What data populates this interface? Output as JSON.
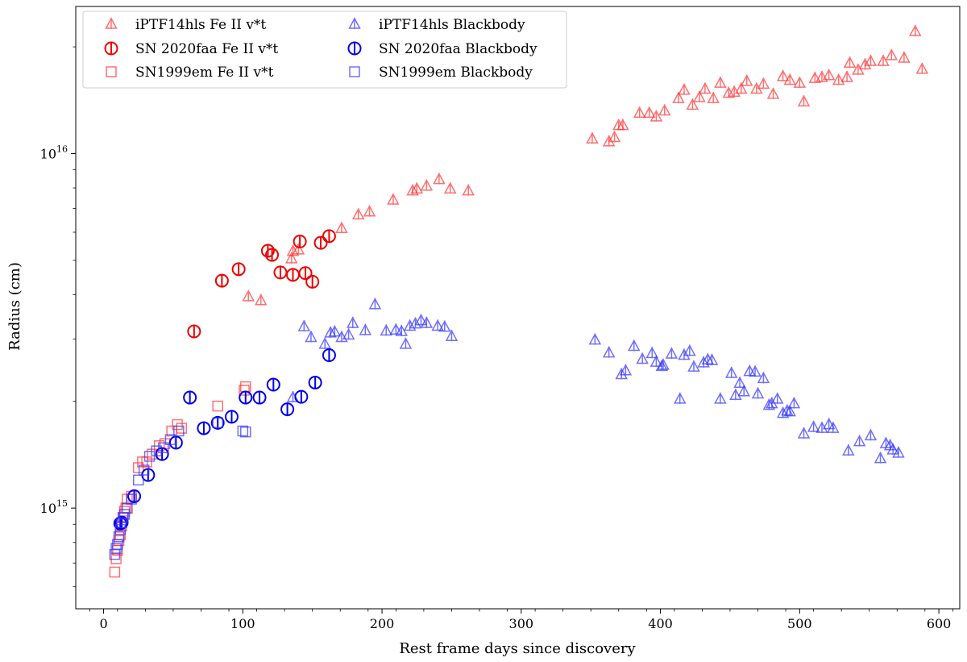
{
  "chart_data": {
    "type": "scatter",
    "title": "",
    "xlabel": "Rest frame days since discovery",
    "ylabel": "Radius (cm)",
    "xscale": "linear",
    "yscale": "log",
    "xlim": [
      -20,
      615
    ],
    "ylim": [
      520000000000000.0,
      2.6e+16
    ],
    "xticks": [
      0,
      100,
      200,
      300,
      400,
      500,
      600
    ],
    "yticks": [
      {
        "value": 1000000000000000.0,
        "base": "10",
        "exp": "15"
      },
      {
        "value": 1e+16,
        "base": "10",
        "exp": "16"
      }
    ],
    "legend_position": "upper-left",
    "series": [
      {
        "name": "iPTF14hls Fe II v*t",
        "color": "#ff3333",
        "marker": "triangle",
        "alpha": 0.7,
        "x": [
          104,
          113,
          135,
          136,
          140,
          171,
          183,
          191,
          208,
          222,
          225,
          232,
          241,
          249,
          262,
          351,
          363,
          367,
          370,
          373,
          385,
          392,
          397,
          403,
          413,
          417,
          423,
          428,
          432,
          438,
          443,
          449,
          453,
          458,
          462,
          469,
          474,
          481,
          488,
          493,
          500,
          503,
          511,
          516,
          521,
          528,
          534,
          536,
          542,
          547,
          551,
          560,
          566,
          575,
          583,
          588
        ],
        "y": [
          3950000000000000.0,
          3850000000000000.0,
          5050000000000000.0,
          5300000000000000.0,
          5350000000000000.0,
          6150000000000000.0,
          6720000000000000.0,
          6850000000000000.0,
          7400000000000000.0,
          7850000000000000.0,
          7950000000000000.0,
          8100000000000000.0,
          8450000000000000.0,
          7950000000000000.0,
          7850000000000000.0,
          1.1e+16,
          1.08e+16,
          1.11e+16,
          1.2e+16,
          1.2e+16,
          1.3e+16,
          1.3e+16,
          1.27e+16,
          1.32e+16,
          1.43e+16,
          1.51e+16,
          1.37e+16,
          1.44e+16,
          1.52e+16,
          1.43e+16,
          1.58e+16,
          1.48e+16,
          1.49e+16,
          1.52e+16,
          1.6e+16,
          1.52e+16,
          1.57e+16,
          1.47e+16,
          1.65e+16,
          1.61e+16,
          1.58e+16,
          1.4e+16,
          1.63e+16,
          1.64e+16,
          1.66e+16,
          1.61e+16,
          1.64e+16,
          1.8e+16,
          1.72e+16,
          1.78e+16,
          1.82e+16,
          1.82e+16,
          1.89e+16,
          1.86e+16,
          2.21e+16,
          1.73e+16
        ]
      },
      {
        "name": "SN 2020faa Fe II v*t",
        "color": "#ee0000",
        "marker": "circle",
        "alpha": 1,
        "x": [
          65,
          85,
          97,
          118,
          121,
          127,
          136,
          141,
          145,
          150,
          156,
          162
        ],
        "y": [
          3150000000000000.0,
          4380000000000000.0,
          4720000000000000.0,
          5320000000000000.0,
          5180000000000000.0,
          4620000000000000.0,
          4550000000000000.0,
          5650000000000000.0,
          4600000000000000.0,
          4350000000000000.0,
          5600000000000000.0,
          5850000000000000.0
        ]
      },
      {
        "name": "SN1999em Fe II v*t",
        "color": "#ff3333",
        "marker": "square",
        "alpha": 0.7,
        "x": [
          8,
          9,
          10,
          11,
          12,
          13,
          14,
          15,
          16,
          17,
          20,
          25,
          28,
          31,
          35,
          40,
          44,
          49,
          53,
          56,
          82,
          101,
          102
        ],
        "y": [
          660000000000000.0,
          720000000000000.0,
          760000000000000.0,
          810000000000000.0,
          840000000000000.0,
          890000000000000.0,
          940000000000000.0,
          980000000000000.0,
          1000000000000000.0,
          1060000000000000.0,
          1080000000000000.0,
          1300000000000000.0,
          1350000000000000.0,
          1350000000000000.0,
          1420000000000000.0,
          1500000000000000.0,
          1520000000000000.0,
          1650000000000000.0,
          1720000000000000.0,
          1680000000000000.0,
          1940000000000000.0,
          2150000000000000.0,
          2200000000000000.0
        ]
      },
      {
        "name": "iPTF14hls Blackbody",
        "color": "#3333ff",
        "marker": "triangle",
        "alpha": 0.7,
        "x": [
          136,
          144,
          149,
          159,
          163,
          166,
          171,
          176,
          179,
          188,
          195,
          203,
          210,
          214,
          217,
          220,
          224,
          228,
          232,
          240,
          245,
          250,
          353,
          363,
          372,
          375,
          381,
          387,
          394,
          397,
          401,
          402,
          408,
          414,
          417,
          421,
          424,
          431,
          434,
          437,
          443,
          451,
          454,
          457,
          460,
          464,
          468,
          470,
          474,
          478,
          480,
          484,
          488,
          491,
          493,
          496,
          503,
          510,
          516,
          521,
          524,
          535,
          543,
          551,
          558,
          562,
          565,
          567,
          571
        ],
        "y": [
          2050000000000000.0,
          3250000000000000.0,
          3030000000000000.0,
          2900000000000000.0,
          3120000000000000.0,
          3140000000000000.0,
          3030000000000000.0,
          3080000000000000.0,
          3320000000000000.0,
          3170000000000000.0,
          3750000000000000.0,
          3160000000000000.0,
          3180000000000000.0,
          3150000000000000.0,
          2900000000000000.0,
          3260000000000000.0,
          3310000000000000.0,
          3380000000000000.0,
          3320000000000000.0,
          3260000000000000.0,
          3240000000000000.0,
          3050000000000000.0,
          2980000000000000.0,
          2740000000000000.0,
          2380000000000000.0,
          2440000000000000.0,
          2860000000000000.0,
          2630000000000000.0,
          2730000000000000.0,
          2580000000000000.0,
          2510000000000000.0,
          2530000000000000.0,
          2720000000000000.0,
          2030000000000000.0,
          2700000000000000.0,
          2770000000000000.0,
          2500000000000000.0,
          2570000000000000.0,
          2620000000000000.0,
          2610000000000000.0,
          2030000000000000.0,
          2400000000000000.0,
          2080000000000000.0,
          2250000000000000.0,
          2130000000000000.0,
          2430000000000000.0,
          2420000000000000.0,
          2100000000000000.0,
          2320000000000000.0,
          1950000000000000.0,
          1970000000000000.0,
          2030000000000000.0,
          1850000000000000.0,
          1880000000000000.0,
          1870000000000000.0,
          1970000000000000.0,
          1620000000000000.0,
          1690000000000000.0,
          1680000000000000.0,
          1720000000000000.0,
          1680000000000000.0,
          1450000000000000.0,
          1540000000000000.0,
          1600000000000000.0,
          1380000000000000.0,
          1520000000000000.0,
          1500000000000000.0,
          1460000000000000.0,
          1430000000000000.0
        ]
      },
      {
        "name": "SN 2020faa Blackbody",
        "color": "#0000ee",
        "marker": "circle",
        "alpha": 1,
        "x": [
          12,
          13,
          22,
          32,
          42,
          52,
          62,
          72,
          82,
          92,
          102,
          112,
          122,
          132,
          142,
          152,
          162
        ],
        "y": [
          905000000000000.0,
          910000000000000.0,
          1080000000000000.0,
          1240000000000000.0,
          1420000000000000.0,
          1530000000000000.0,
          2050000000000000.0,
          1680000000000000.0,
          1740000000000000.0,
          1810000000000000.0,
          2050000000000000.0,
          2050000000000000.0,
          2230000000000000.0,
          1900000000000000.0,
          2060000000000000.0,
          2260000000000000.0,
          2700000000000000.0
        ]
      },
      {
        "name": "SN1999em Blackbody",
        "color": "#3333ff",
        "marker": "square",
        "alpha": 0.7,
        "x": [
          8,
          9,
          10,
          11,
          12,
          13,
          14,
          15,
          17,
          20,
          25,
          29,
          33,
          38,
          43,
          48,
          54,
          82,
          100,
          102
        ],
        "y": [
          740000000000000.0,
          770000000000000.0,
          790000000000000.0,
          830000000000000.0,
          870000000000000.0,
          910000000000000.0,
          940000000000000.0,
          960000000000000.0,
          1000000000000000.0,
          1060000000000000.0,
          1200000000000000.0,
          1280000000000000.0,
          1400000000000000.0,
          1450000000000000.0,
          1480000000000000.0,
          1560000000000000.0,
          1650000000000000.0,
          1740000000000000.0,
          1650000000000000.0,
          1640000000000000.0
        ]
      }
    ]
  }
}
